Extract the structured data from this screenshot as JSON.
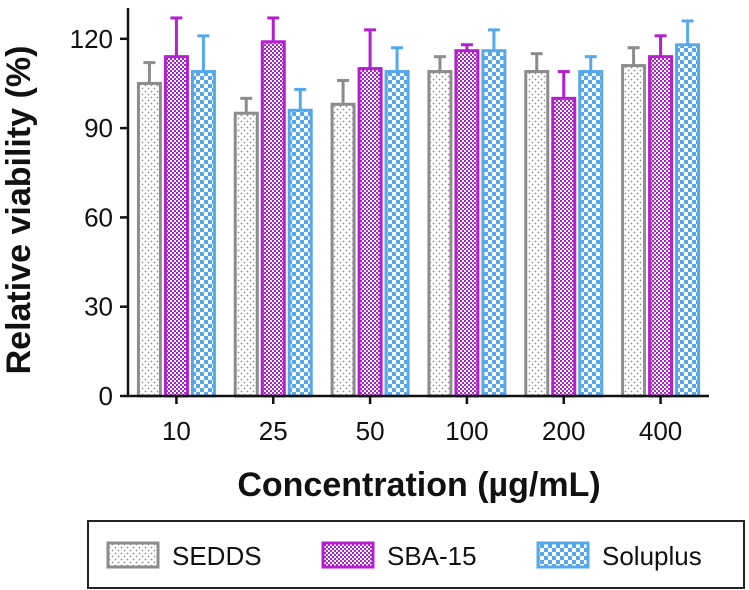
{
  "chart_data": {
    "type": "bar",
    "title": "",
    "xlabel": "Concentration (µg/mL)",
    "ylabel": "Relative viability (%)",
    "ylim": [
      0,
      130
    ],
    "yticks": [
      0,
      30,
      60,
      90,
      120
    ],
    "categories": [
      "10",
      "25",
      "50",
      "100",
      "200",
      "400"
    ],
    "series": [
      {
        "name": "SEDDS",
        "color": "#8c8c8c",
        "pattern": "dots",
        "values": [
          105,
          95,
          98,
          109,
          109,
          111
        ],
        "errors": [
          7,
          5,
          8,
          5,
          6,
          6
        ]
      },
      {
        "name": "SBA-15",
        "color": "#b31fd1",
        "pattern": "checker",
        "values": [
          114,
          119,
          110,
          116,
          100,
          114
        ],
        "errors": [
          13,
          8,
          13,
          2,
          9,
          7
        ]
      },
      {
        "name": "Soluplus",
        "color": "#56a8ec",
        "pattern": "checker-large",
        "values": [
          109,
          96,
          109,
          116,
          109,
          118
        ],
        "errors": [
          12,
          7,
          8,
          7,
          5,
          8
        ]
      }
    ],
    "legend": {
      "placement": "bottom"
    }
  }
}
